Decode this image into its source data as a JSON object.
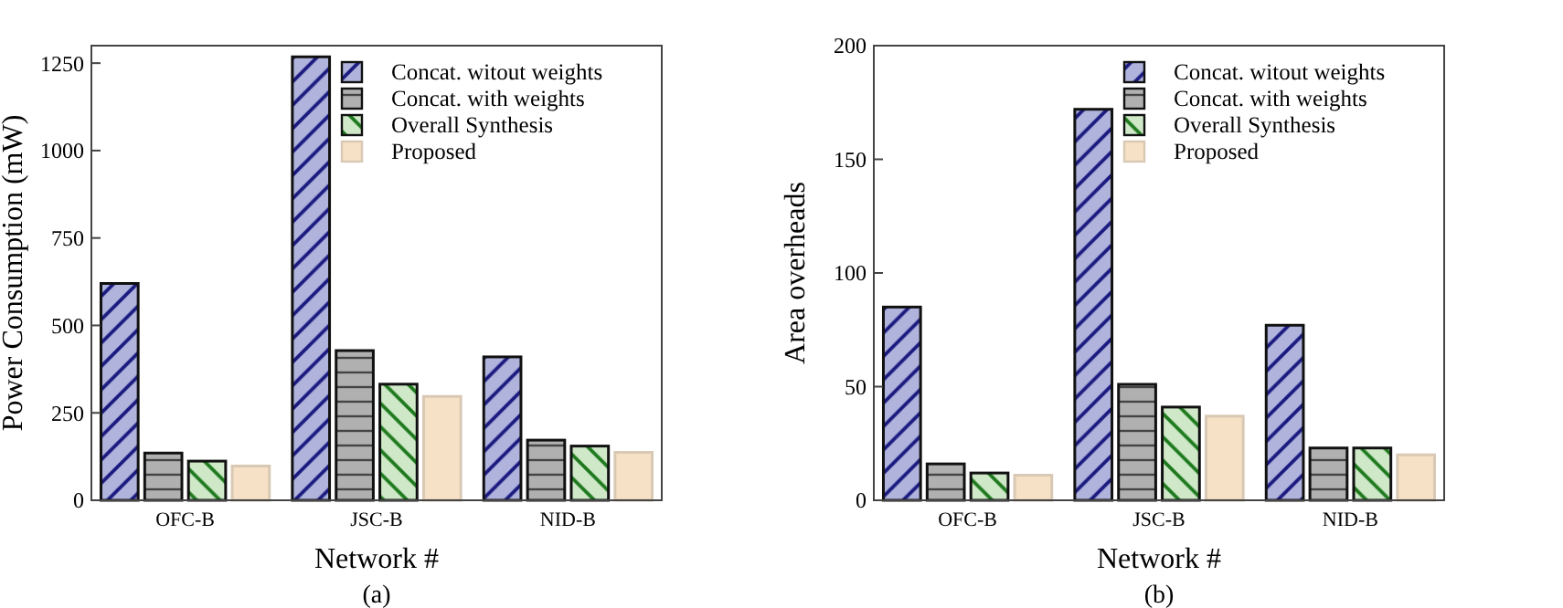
{
  "chart_data": [
    {
      "type": "bar",
      "xlabel": "Network #",
      "ylabel": "Power Consumption (mW)",
      "categories": [
        "OFC-B",
        "JSC-B",
        "NID-B"
      ],
      "ylim": [
        0,
        1300
      ],
      "yticks": [
        0,
        250,
        500,
        750,
        1000,
        1250
      ],
      "legend": "top right",
      "annotations": [
        "(a)"
      ],
      "series": [
        {
          "name": "Concat. witout weights",
          "color": "#b0b3dc",
          "values": [
            620,
            1268,
            410
          ]
        },
        {
          "name": "Concat. with weights",
          "color": "#b0b0b0",
          "values": [
            135,
            428,
            172
          ]
        },
        {
          "name": "Overall Synthesis",
          "color": "#cfe8c8",
          "values": [
            112,
            332,
            155
          ]
        },
        {
          "name": "Proposed",
          "color": "#f7e1c6",
          "values": [
            98,
            297,
            137
          ]
        }
      ]
    },
    {
      "type": "bar",
      "xlabel": "Network #",
      "ylabel": "Area overheads",
      "categories": [
        "OFC-B",
        "JSC-B",
        "NID-B"
      ],
      "ylim": [
        0,
        200
      ],
      "yticks": [
        0,
        50,
        100,
        150,
        200
      ],
      "legend": "top right",
      "annotations": [
        "(b)"
      ],
      "series": [
        {
          "name": "Concat. witout weights",
          "color": "#b0b3dc",
          "values": [
            85,
            172,
            77
          ]
        },
        {
          "name": "Concat. with weights",
          "color": "#b0b0b0",
          "values": [
            16,
            51,
            23
          ]
        },
        {
          "name": "Overall Synthesis",
          "color": "#cfe8c8",
          "values": [
            12,
            41,
            23
          ]
        },
        {
          "name": "Proposed",
          "color": "#f7e1c6",
          "values": [
            11,
            37,
            20
          ]
        }
      ]
    }
  ]
}
